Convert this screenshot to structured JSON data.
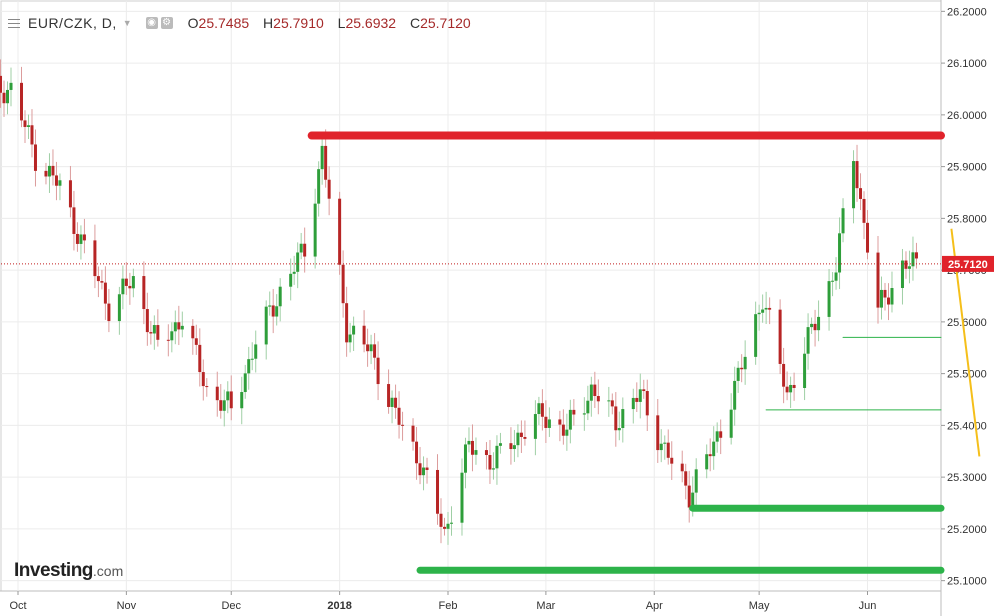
{
  "legend": {
    "symbol": "EUR/CZK, D,",
    "open_label": "O",
    "open": "25.7485",
    "high_label": "H",
    "high": "25.7910",
    "low_label": "L",
    "low": "25.6932",
    "close_label": "C",
    "close": "25.7120",
    "menu_icon": "hamburger-menu-icon",
    "tool_icons": [
      "eye-icon",
      "settings-icon"
    ]
  },
  "logo": {
    "main": "Investing",
    "suffix": ".com"
  },
  "colors": {
    "up": "#2e9e3a",
    "down": "#b72525",
    "resistance": "#e0232b",
    "support": "#2db34a",
    "trend": "#f5bf1a",
    "price_line": "#c01c1c",
    "price_tag": "#e0232b"
  },
  "chart_data": {
    "type": "candlestick",
    "title": "EUR/CZK, D,",
    "xlabel": "",
    "ylabel": "",
    "y_range": [
      25.08,
      26.22
    ],
    "y_ticks": [
      "26.2000",
      "26.1000",
      "26.0000",
      "25.9000",
      "25.8000",
      "25.7000",
      "25.6000",
      "25.5000",
      "25.4000",
      "25.3000",
      "25.2000",
      "25.1000"
    ],
    "x_ticks": [
      "Oct",
      "Nov",
      "Dec",
      "2018",
      "Feb",
      "Mar",
      "Apr",
      "May",
      "Jun"
    ],
    "grid": true,
    "current_price": "25.7120",
    "series": [
      {
        "date": "2017-09-29",
        "close": 26.05
      },
      {
        "date": "2017-10-06",
        "close": 25.92
      },
      {
        "date": "2017-10-13",
        "close": 25.86
      },
      {
        "date": "2017-10-20",
        "close": 25.74
      },
      {
        "date": "2017-10-27",
        "close": 25.63
      },
      {
        "date": "2017-11-03",
        "close": 25.68
      },
      {
        "date": "2017-11-10",
        "close": 25.55
      },
      {
        "date": "2017-11-17",
        "close": 25.61
      },
      {
        "date": "2017-11-24",
        "close": 25.47
      },
      {
        "date": "2017-12-01",
        "close": 25.43
      },
      {
        "date": "2017-12-08",
        "close": 25.56
      },
      {
        "date": "2017-12-15",
        "close": 25.66
      },
      {
        "date": "2017-12-22",
        "close": 25.74
      },
      {
        "date": "2017-12-27",
        "close": 25.93
      },
      {
        "date": "2018-01-03",
        "close": 25.59
      },
      {
        "date": "2018-01-10",
        "close": 25.54
      },
      {
        "date": "2018-01-17",
        "close": 25.42
      },
      {
        "date": "2018-01-24",
        "close": 25.33
      },
      {
        "date": "2018-01-31",
        "close": 25.19
      },
      {
        "date": "2018-02-07",
        "close": 25.36
      },
      {
        "date": "2018-02-14",
        "close": 25.33
      },
      {
        "date": "2018-02-21",
        "close": 25.38
      },
      {
        "date": "2018-02-28",
        "close": 25.42
      },
      {
        "date": "2018-03-07",
        "close": 25.39
      },
      {
        "date": "2018-03-14",
        "close": 25.47
      },
      {
        "date": "2018-03-21",
        "close": 25.41
      },
      {
        "date": "2018-03-28",
        "close": 25.46
      },
      {
        "date": "2018-04-04",
        "close": 25.35
      },
      {
        "date": "2018-04-11",
        "close": 25.27
      },
      {
        "date": "2018-04-18",
        "close": 25.36
      },
      {
        "date": "2018-04-25",
        "close": 25.49
      },
      {
        "date": "2018-05-02",
        "close": 25.65
      },
      {
        "date": "2018-05-09",
        "close": 25.46
      },
      {
        "date": "2018-05-16",
        "close": 25.58
      },
      {
        "date": "2018-05-23",
        "close": 25.71
      },
      {
        "date": "2018-05-28",
        "close": 25.92
      },
      {
        "date": "2018-06-04",
        "close": 25.62
      },
      {
        "date": "2018-06-11",
        "close": 25.71
      }
    ],
    "annotations": [
      {
        "type": "hline",
        "name": "resistance",
        "price": 25.96,
        "from": "2017-12-24",
        "to": "2018-06-25",
        "color": "resistance"
      },
      {
        "type": "hline",
        "name": "support-upper",
        "price": 25.24,
        "from": "2018-04-12",
        "to": "2018-06-25",
        "color": "support"
      },
      {
        "type": "hline",
        "name": "support-lower",
        "price": 25.12,
        "from": "2018-01-24",
        "to": "2018-06-25",
        "color": "support"
      },
      {
        "type": "hline",
        "name": "minor-level-1",
        "price": 25.57,
        "from": "2018-05-25",
        "to": "2018-06-25",
        "color": "support"
      },
      {
        "type": "hline",
        "name": "minor-level-2",
        "price": 25.43,
        "from": "2018-05-03",
        "to": "2018-06-25",
        "color": "support"
      },
      {
        "type": "trendline",
        "name": "trend-line",
        "from": {
          "date": "2018-06-25",
          "price": 25.78
        },
        "to": {
          "date": "2018-07-03",
          "price": 25.34
        },
        "color": "trend"
      }
    ]
  }
}
